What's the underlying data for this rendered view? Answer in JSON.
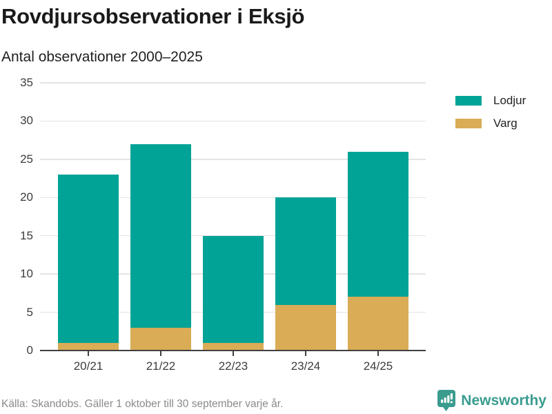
{
  "header": {
    "title": "Rovdjursobservationer i Eksjö",
    "subtitle": "Antal observationer 2000–2025"
  },
  "chart_data": {
    "type": "bar",
    "stacked": true,
    "categories": [
      "20/21",
      "21/22",
      "22/23",
      "23/24",
      "24/25"
    ],
    "series": [
      {
        "name": "Lodjur",
        "color": "#00a396",
        "values": [
          22,
          24,
          14,
          14,
          19
        ]
      },
      {
        "name": "Varg",
        "color": "#d9ac55",
        "values": [
          1,
          3,
          1,
          6,
          7
        ]
      }
    ],
    "stack_order_bottom_to_top": [
      "Varg",
      "Lodjur"
    ],
    "totals": [
      23,
      27,
      15,
      20,
      26
    ],
    "ylim": [
      0,
      35
    ],
    "yticks": [
      0,
      5,
      10,
      15,
      20,
      25,
      30,
      35
    ],
    "grid": "horizontal-only",
    "legend_position": "top-right",
    "xlabel": "",
    "ylabel": ""
  },
  "footer": {
    "source": "Källa: Skandobs. Gäller 1 oktober till 30 september varje år.",
    "brand": "Newsworthy"
  },
  "colors": {
    "lodjur": "#00a396",
    "varg": "#d9ac55",
    "brand_teal": "#3a9c8e",
    "grid": "#e4e4e4",
    "axis": "#3f3f3f",
    "title_text": "#1a1a1a",
    "axis_text": "#3c3c3c",
    "muted_text": "#8a8a8a"
  },
  "icons": {
    "brand_logo": "bar-chart-speech-bubble-icon"
  }
}
